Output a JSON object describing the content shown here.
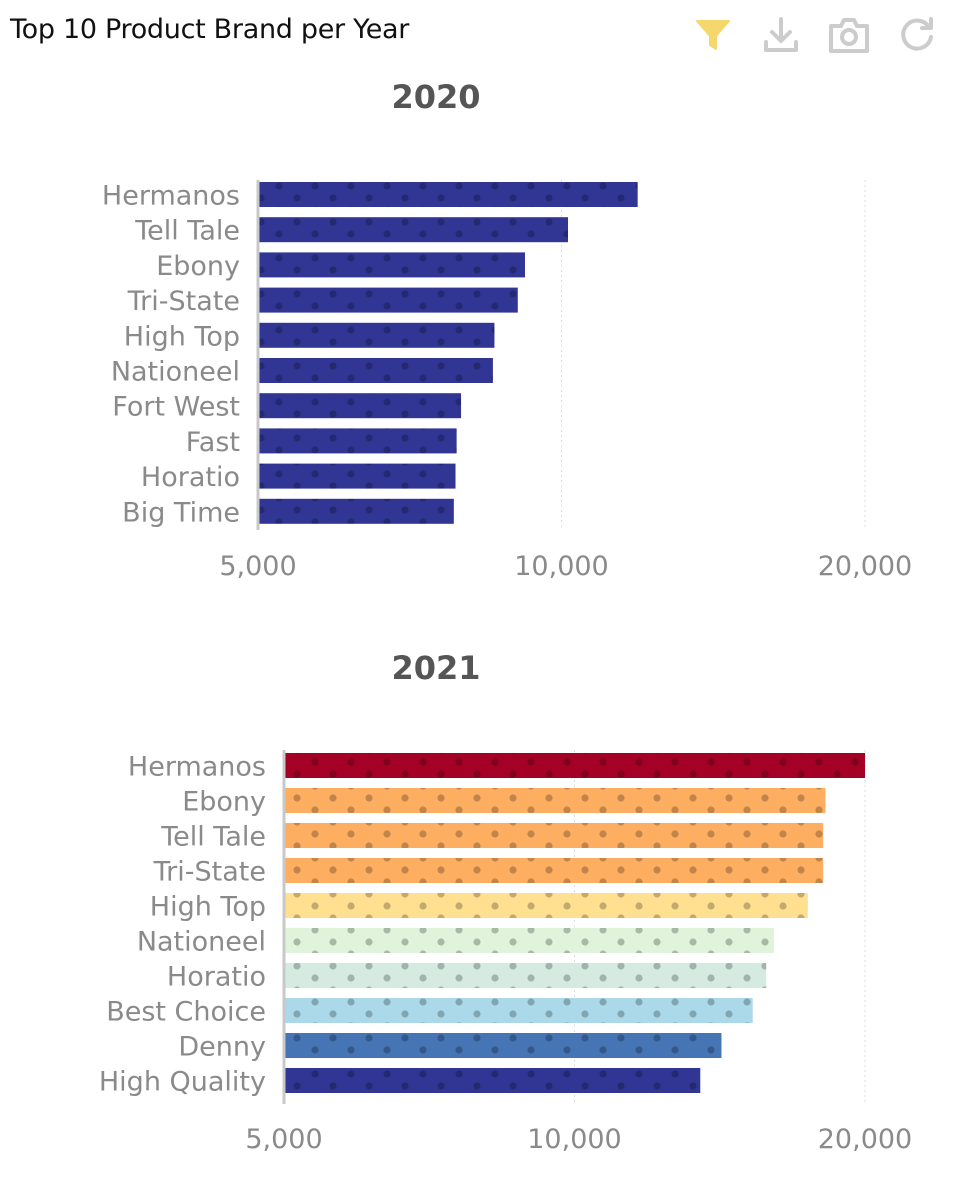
{
  "header": {
    "title": "Top 10 Product Brand per Year",
    "tools": [
      {
        "icon": "filter-icon",
        "color": "#f5d76e"
      },
      {
        "icon": "download-icon",
        "color": "#cccccc"
      },
      {
        "icon": "camera-icon",
        "color": "#cccccc"
      },
      {
        "icon": "refresh-icon",
        "color": "#cccccc"
      }
    ]
  },
  "chart_data": [
    {
      "type": "bar",
      "orientation": "horizontal",
      "title": "2020",
      "x_scale": "log",
      "xlim": [
        5000,
        20000
      ],
      "xticks": [
        5000,
        10000,
        20000
      ],
      "xtick_labels": [
        "5,000",
        "10,000",
        "20,000"
      ],
      "grid": true,
      "categories": [
        "Hermanos",
        "Tell Tale",
        "Ebony",
        "Tri-State",
        "High Top",
        "Nationeel",
        "Fort West",
        "Fast",
        "Horatio",
        "Big Time"
      ],
      "values": [
        11900,
        10150,
        9200,
        9050,
        8580,
        8550,
        7950,
        7870,
        7850,
        7820
      ],
      "colors": [
        "#313695",
        "#313695",
        "#313695",
        "#313695",
        "#313695",
        "#313695",
        "#313695",
        "#313695",
        "#313695",
        "#313695"
      ],
      "pattern": "dots"
    },
    {
      "type": "bar",
      "orientation": "horizontal",
      "title": "2021",
      "x_scale": "log",
      "xlim": [
        5000,
        20000
      ],
      "xticks": [
        5000,
        10000,
        20000
      ],
      "xtick_labels": [
        "5,000",
        "10,000",
        "20,000"
      ],
      "grid": true,
      "categories": [
        "Hermanos",
        "Ebony",
        "Tell Tale",
        "Tri-State",
        "High Top",
        "Nationeel",
        "Horatio",
        "Best Choice",
        "Denny",
        "High Quality"
      ],
      "values": [
        20000,
        18200,
        18100,
        18100,
        17450,
        16100,
        15800,
        15300,
        14200,
        13500
      ],
      "colors": [
        "#a50026",
        "#fdae61",
        "#fdae61",
        "#fdae61",
        "#fee090",
        "#e0f3db",
        "#d5ebe2",
        "#abd9e9",
        "#4575b4",
        "#313695"
      ],
      "pattern": "dots"
    }
  ]
}
